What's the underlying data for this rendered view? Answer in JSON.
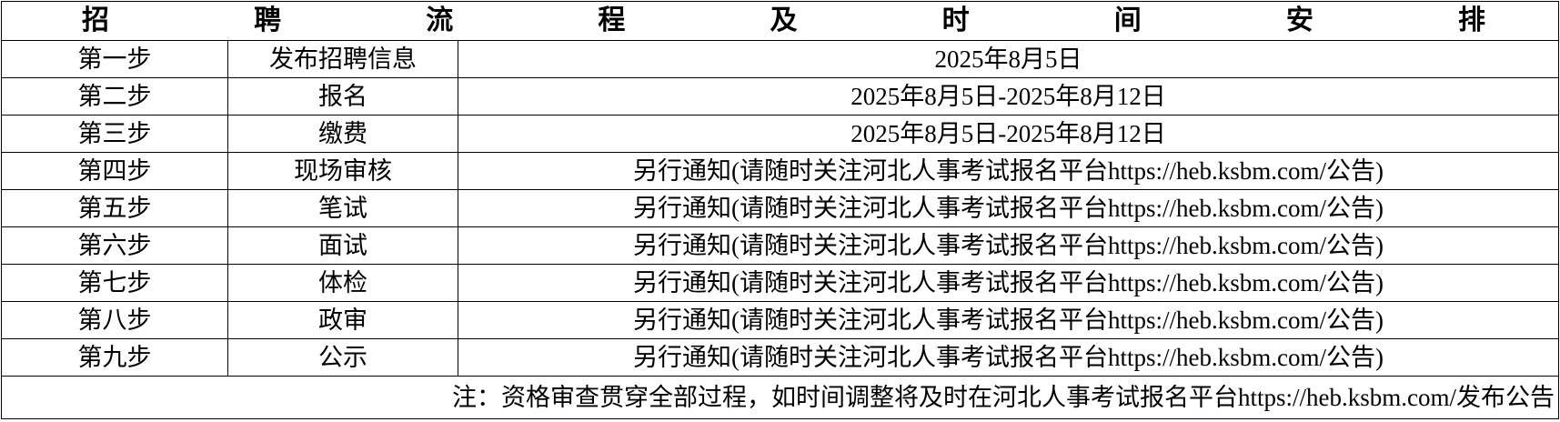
{
  "title_chars": [
    "招",
    "聘",
    "流",
    "程",
    "及",
    "时",
    "间",
    "安",
    "排"
  ],
  "rows": [
    {
      "step": "第一步",
      "item": "发布招聘信息",
      "time": "2025年8月5日"
    },
    {
      "step": "第二步",
      "item": "报名",
      "time": "2025年8月5日-2025年8月12日"
    },
    {
      "step": "第三步",
      "item": "缴费",
      "time": "2025年8月5日-2025年8月12日"
    },
    {
      "step": "第四步",
      "item": "现场审核",
      "time": "另行通知(请随时关注河北人事考试报名平台https://heb.ksbm.com/公告)"
    },
    {
      "step": "第五步",
      "item": "笔试",
      "time": "另行通知(请随时关注河北人事考试报名平台https://heb.ksbm.com/公告)"
    },
    {
      "step": "第六步",
      "item": "面试",
      "time": "另行通知(请随时关注河北人事考试报名平台https://heb.ksbm.com/公告)"
    },
    {
      "step": "第七步",
      "item": "体检",
      "time": "另行通知(请随时关注河北人事考试报名平台https://heb.ksbm.com/公告)"
    },
    {
      "step": "第八步",
      "item": "政审",
      "time": "另行通知(请随时关注河北人事考试报名平台https://heb.ksbm.com/公告)"
    },
    {
      "step": "第九步",
      "item": "公示",
      "time": "另行通知(请随时关注河北人事考试报名平台https://heb.ksbm.com/公告)"
    }
  ],
  "note": "注：资格审查贯穿全部过程，如时间调整将及时在河北人事考试报名平台https://heb.ksbm.com/发布公告"
}
